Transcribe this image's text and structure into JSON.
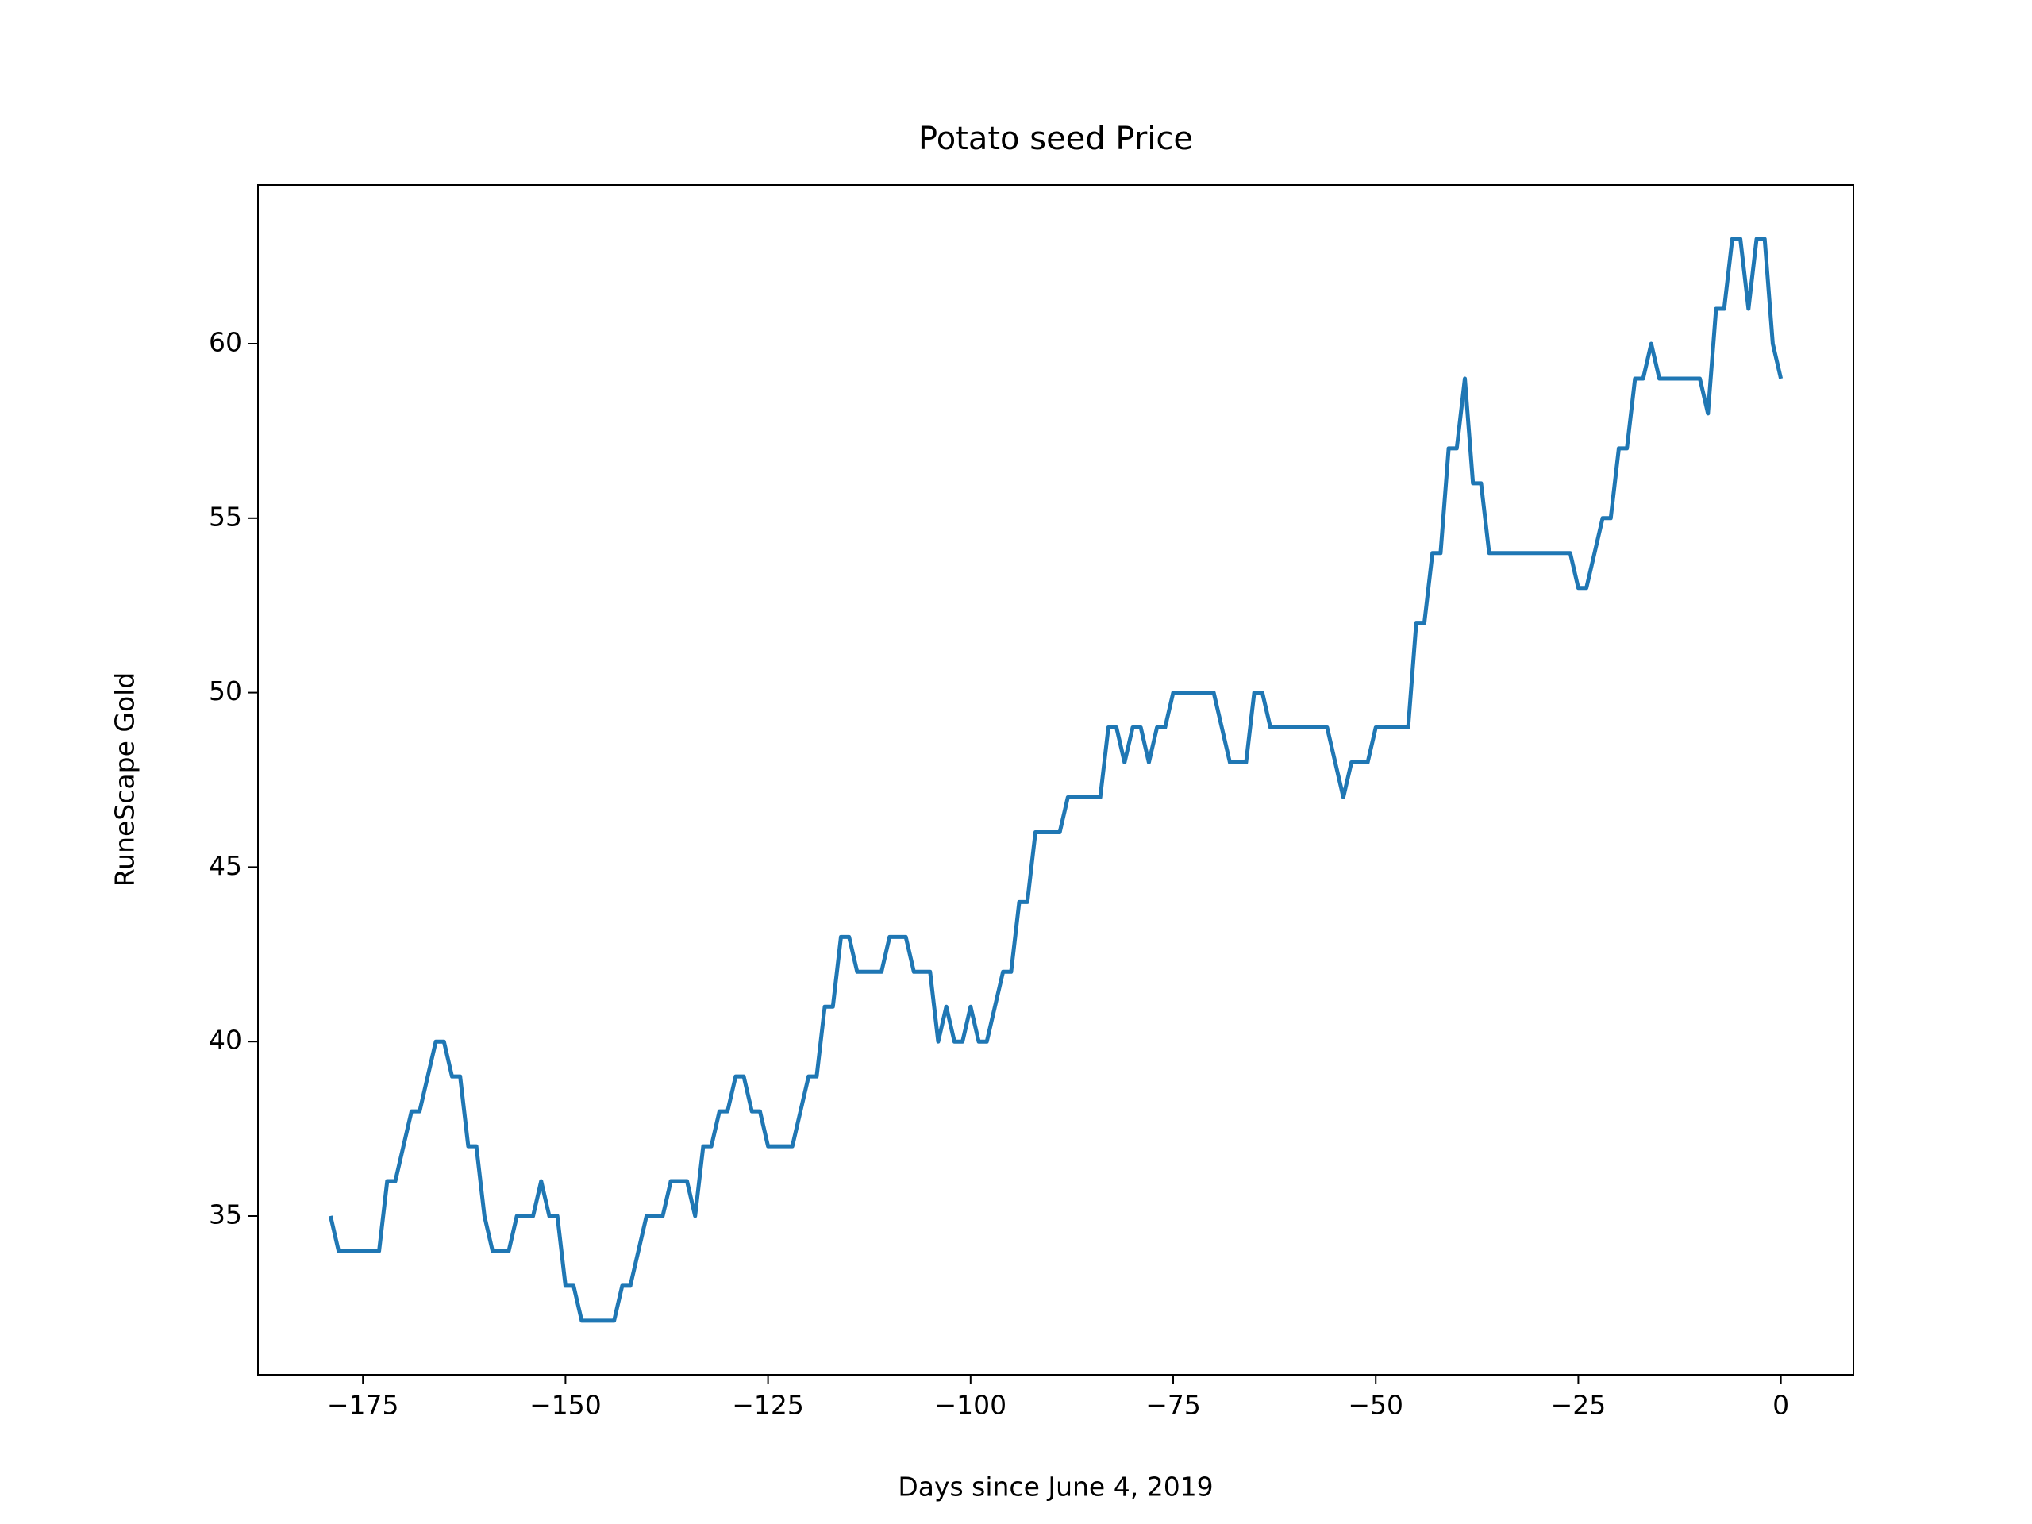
{
  "chart_data": {
    "type": "line",
    "title": "Potato seed Price",
    "x_label": "Days since June 4, 2019",
    "y_label": "RuneScape Gold",
    "x": [
      -179,
      -178,
      -177,
      -176,
      -175,
      -174,
      -173,
      -172,
      -171,
      -170,
      -169,
      -168,
      -167,
      -166,
      -165,
      -164,
      -163,
      -162,
      -161,
      -160,
      -159,
      -158,
      -157,
      -156,
      -155,
      -154,
      -153,
      -152,
      -151,
      -150,
      -149,
      -148,
      -147,
      -146,
      -145,
      -144,
      -143,
      -142,
      -141,
      -140,
      -139,
      -138,
      -137,
      -136,
      -135,
      -134,
      -133,
      -132,
      -131,
      -130,
      -129,
      -128,
      -127,
      -126,
      -125,
      -124,
      -123,
      -122,
      -121,
      -120,
      -119,
      -118,
      -117,
      -116,
      -115,
      -114,
      -113,
      -112,
      -111,
      -110,
      -109,
      -108,
      -107,
      -106,
      -105,
      -104,
      -103,
      -102,
      -101,
      -100,
      -99,
      -98,
      -97,
      -96,
      -95,
      -94,
      -93,
      -92,
      -91,
      -90,
      -89,
      -88,
      -87,
      -86,
      -85,
      -84,
      -83,
      -82,
      -81,
      -80,
      -79,
      -78,
      -77,
      -76,
      -75,
      -74,
      -73,
      -72,
      -71,
      -70,
      -69,
      -68,
      -67,
      -66,
      -65,
      -64,
      -63,
      -62,
      -61,
      -60,
      -59,
      -58,
      -57,
      -56,
      -55,
      -54,
      -53,
      -52,
      -51,
      -50,
      -49,
      -48,
      -47,
      -46,
      -45,
      -44,
      -43,
      -42,
      -41,
      -40,
      -39,
      -38,
      -37,
      -36,
      -35,
      -34,
      -33,
      -32,
      -31,
      -30,
      -29,
      -28,
      -27,
      -26,
      -25,
      -24,
      -23,
      -22,
      -21,
      -20,
      -19,
      -18,
      -17,
      -16,
      -15,
      -14,
      -13,
      -12,
      -11,
      -10,
      -9,
      -8,
      -7,
      -6,
      -5,
      -4,
      -3,
      -2,
      -1,
      0
    ],
    "series": [
      {
        "color": "#1f77b4",
        "values": [
          35,
          34,
          34,
          34,
          34,
          34,
          34,
          36,
          36,
          37,
          38,
          38,
          39,
          40,
          40,
          39,
          39,
          37,
          37,
          35,
          34,
          34,
          34,
          35,
          35,
          35,
          36,
          35,
          35,
          33,
          33,
          32,
          32,
          32,
          32,
          32,
          33,
          33,
          34,
          35,
          35,
          35,
          36,
          36,
          36,
          35,
          37,
          37,
          38,
          38,
          39,
          39,
          38,
          38,
          37,
          37,
          37,
          37,
          38,
          39,
          39,
          41,
          41,
          43,
          43,
          42,
          42,
          42,
          42,
          43,
          43,
          43,
          42,
          42,
          42,
          40,
          41,
          40,
          40,
          41,
          40,
          40,
          41,
          42,
          42,
          44,
          44,
          46,
          46,
          46,
          46,
          47,
          47,
          47,
          47,
          47,
          49,
          49,
          48,
          49,
          49,
          48,
          49,
          49,
          50,
          50,
          50,
          50,
          50,
          50,
          49,
          48,
          48,
          48,
          50,
          50,
          49,
          49,
          49,
          49,
          49,
          49,
          49,
          49,
          48,
          47,
          48,
          48,
          48,
          49,
          49,
          49,
          49,
          49,
          52,
          52,
          54,
          54,
          57,
          57,
          59,
          56,
          56,
          54,
          54,
          54,
          54,
          54,
          54,
          54,
          54,
          54,
          54,
          54,
          53,
          53,
          54,
          55,
          55,
          57,
          57,
          59,
          59,
          60,
          59,
          59,
          59,
          59,
          59,
          59,
          58,
          61,
          61,
          63,
          63,
          61,
          63,
          63,
          60,
          59
        ]
      }
    ],
    "xlim": [
      -187.95,
      8.95
    ],
    "ylim": [
      30.45,
      64.55
    ],
    "xticks": [
      {
        "value": -175,
        "label": "−175"
      },
      {
        "value": -150,
        "label": "−150"
      },
      {
        "value": -125,
        "label": "−125"
      },
      {
        "value": -100,
        "label": "−100"
      },
      {
        "value": -75,
        "label": "−75"
      },
      {
        "value": -50,
        "label": "−50"
      },
      {
        "value": -25,
        "label": "−25"
      },
      0
    ],
    "yticks": [
      35,
      40,
      45,
      50,
      55,
      60
    ]
  }
}
